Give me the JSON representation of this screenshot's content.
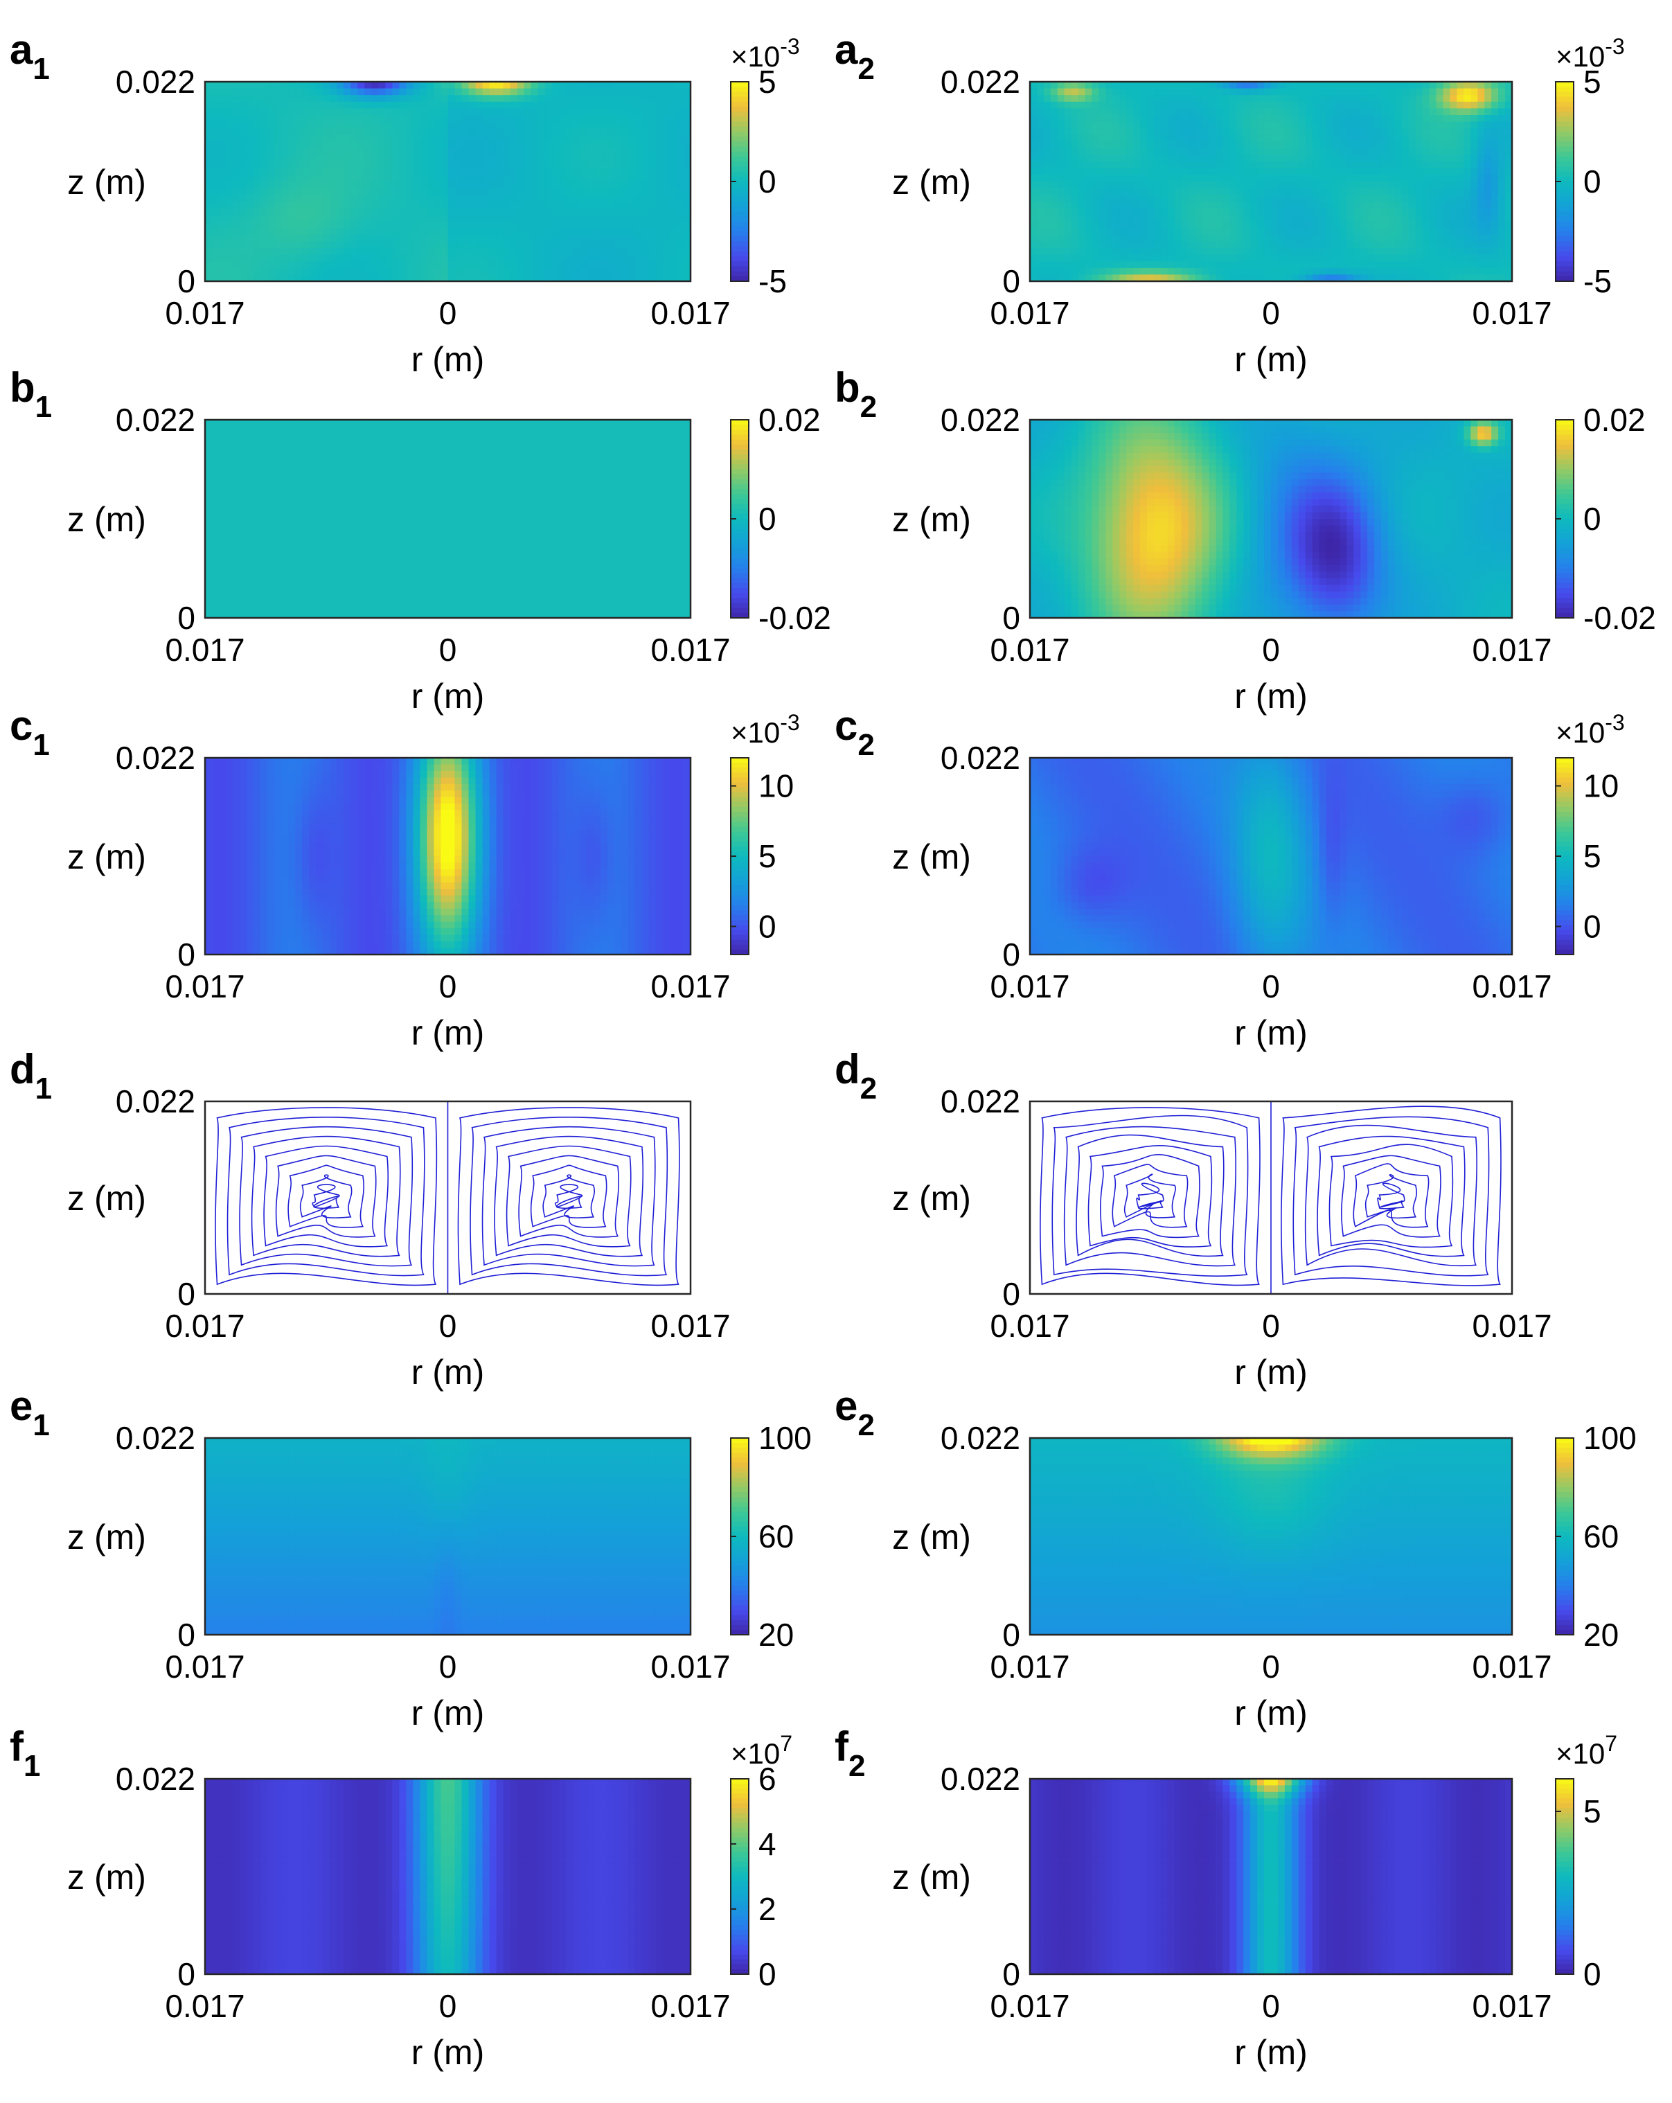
{
  "chart_data": [
    {
      "id": "a1",
      "type": "heatmap",
      "label": "a",
      "sub": "1",
      "xlabel": "r (m)",
      "ylabel": "z (m)",
      "x_ticks": [
        "0.017",
        "0",
        "0.017"
      ],
      "y_ticks": [
        "0",
        "0.022"
      ],
      "cbar_ticks": [
        "-5",
        "0",
        "5"
      ],
      "cbar_values": [
        -5,
        0,
        5
      ],
      "cbar_range": [
        -5,
        5
      ],
      "cbar_multiplier": {
        "base": "×10",
        "exp": "-3"
      },
      "field": "a1"
    },
    {
      "id": "a2",
      "type": "heatmap",
      "label": "a",
      "sub": "2",
      "xlabel": "r (m)",
      "ylabel": "z (m)",
      "x_ticks": [
        "0.017",
        "0",
        "0.017"
      ],
      "y_ticks": [
        "0",
        "0.022"
      ],
      "cbar_ticks": [
        "-5",
        "0",
        "5"
      ],
      "cbar_values": [
        -5,
        0,
        5
      ],
      "cbar_range": [
        -5,
        5
      ],
      "cbar_multiplier": {
        "base": "×10",
        "exp": "-3"
      },
      "field": "a2"
    },
    {
      "id": "b1",
      "type": "heatmap",
      "label": "b",
      "sub": "1",
      "xlabel": "r (m)",
      "ylabel": "z (m)",
      "x_ticks": [
        "0.017",
        "0",
        "0.017"
      ],
      "y_ticks": [
        "0",
        "0.022"
      ],
      "cbar_ticks": [
        "-0.02",
        "0",
        "0.02"
      ],
      "cbar_values": [
        -0.02,
        0,
        0.02
      ],
      "cbar_range": [
        -0.02,
        0.02
      ],
      "field": "b1"
    },
    {
      "id": "b2",
      "type": "heatmap",
      "label": "b",
      "sub": "2",
      "xlabel": "r (m)",
      "ylabel": "z (m)",
      "x_ticks": [
        "0.017",
        "0",
        "0.017"
      ],
      "y_ticks": [
        "0",
        "0.022"
      ],
      "cbar_ticks": [
        "-0.02",
        "0",
        "0.02"
      ],
      "cbar_values": [
        -0.02,
        0,
        0.02
      ],
      "cbar_range": [
        -0.02,
        0.02
      ],
      "field": "b2"
    },
    {
      "id": "c1",
      "type": "heatmap",
      "label": "c",
      "sub": "1",
      "xlabel": "r (m)",
      "ylabel": "z (m)",
      "x_ticks": [
        "0.017",
        "0",
        "0.017"
      ],
      "y_ticks": [
        "0",
        "0.022"
      ],
      "cbar_ticks": [
        "0",
        "5",
        "10"
      ],
      "cbar_values": [
        0,
        5,
        10
      ],
      "cbar_range": [
        -2,
        12
      ],
      "cbar_multiplier": {
        "base": "×10",
        "exp": "-3"
      },
      "field": "c1"
    },
    {
      "id": "c2",
      "type": "heatmap",
      "label": "c",
      "sub": "2",
      "xlabel": "r (m)",
      "ylabel": "z (m)",
      "x_ticks": [
        "0.017",
        "0",
        "0.017"
      ],
      "y_ticks": [
        "0",
        "0.022"
      ],
      "cbar_ticks": [
        "0",
        "5",
        "10"
      ],
      "cbar_values": [
        0,
        5,
        10
      ],
      "cbar_range": [
        -2,
        12
      ],
      "cbar_multiplier": {
        "base": "×10",
        "exp": "-3"
      },
      "field": "c2"
    },
    {
      "id": "d1",
      "type": "streamline",
      "label": "d",
      "sub": "1",
      "xlabel": "r (m)",
      "ylabel": "z (m)",
      "x_ticks": [
        "0.017",
        "0",
        "0.017"
      ],
      "y_ticks": [
        "0",
        "0.022"
      ],
      "line_color": "#1f1fd6",
      "field": "d1"
    },
    {
      "id": "d2",
      "type": "streamline",
      "label": "d",
      "sub": "2",
      "xlabel": "r (m)",
      "ylabel": "z (m)",
      "x_ticks": [
        "0.017",
        "0",
        "0.017"
      ],
      "y_ticks": [
        "0",
        "0.022"
      ],
      "line_color": "#1f1fd6",
      "field": "d2"
    },
    {
      "id": "e1",
      "type": "heatmap",
      "label": "e",
      "sub": "1",
      "xlabel": "r (m)",
      "ylabel": "z (m)",
      "x_ticks": [
        "0.017",
        "0",
        "0.017"
      ],
      "y_ticks": [
        "0",
        "0.022"
      ],
      "cbar_ticks": [
        "20",
        "60",
        "100"
      ],
      "cbar_values": [
        20,
        60,
        100
      ],
      "cbar_range": [
        20,
        100
      ],
      "field": "e1"
    },
    {
      "id": "e2",
      "type": "heatmap",
      "label": "e",
      "sub": "2",
      "xlabel": "r (m)",
      "ylabel": "z (m)",
      "x_ticks": [
        "0.017",
        "0",
        "0.017"
      ],
      "y_ticks": [
        "0",
        "0.022"
      ],
      "cbar_ticks": [
        "20",
        "60",
        "100"
      ],
      "cbar_values": [
        20,
        60,
        100
      ],
      "cbar_range": [
        20,
        100
      ],
      "field": "e2"
    },
    {
      "id": "f1",
      "type": "heatmap",
      "label": "f",
      "sub": "1",
      "xlabel": "r (m)",
      "ylabel": "z (m)",
      "x_ticks": [
        "0.017",
        "0",
        "0.017"
      ],
      "y_ticks": [
        "0",
        "0.022"
      ],
      "cbar_ticks": [
        "0",
        "2",
        "4",
        "6"
      ],
      "cbar_values": [
        0,
        2,
        4,
        6
      ],
      "cbar_range": [
        0,
        6
      ],
      "cbar_multiplier": {
        "base": "×10",
        "exp": "7"
      },
      "field": "f1"
    },
    {
      "id": "f2",
      "type": "heatmap",
      "label": "f",
      "sub": "2",
      "xlabel": "r (m)",
      "ylabel": "z (m)",
      "x_ticks": [
        "0.017",
        "0",
        "0.017"
      ],
      "y_ticks": [
        "0",
        "0.022"
      ],
      "cbar_ticks": [
        "0",
        "5"
      ],
      "cbar_values": [
        0,
        5
      ],
      "cbar_range": [
        0,
        6
      ],
      "cbar_multiplier": {
        "base": "×10",
        "exp": "7"
      },
      "field": "f2"
    }
  ]
}
